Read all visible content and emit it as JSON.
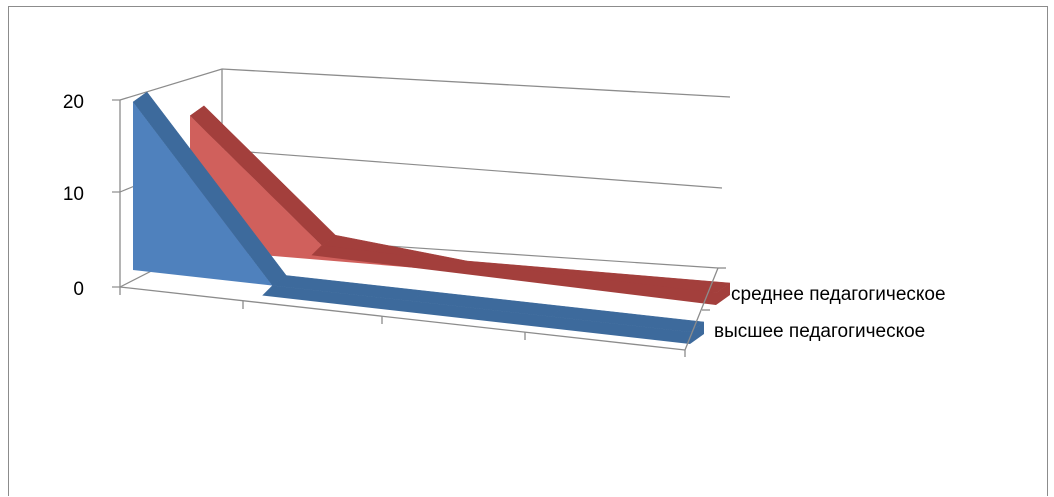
{
  "chart_data": {
    "type": "area",
    "style": "3d-area",
    "categories": [
      "",
      "",
      "",
      "",
      ""
    ],
    "series": [
      {
        "name": "высшее педагогическое",
        "values": [
          20,
          0,
          0,
          0,
          0
        ],
        "color": "#4f81bd"
      },
      {
        "name": "среднее педагогическое",
        "values": [
          18,
          2,
          0,
          0,
          0
        ],
        "color": "#c0504d"
      }
    ],
    "y_ticks": [
      "0",
      "10",
      "20"
    ],
    "ylim": [
      0,
      20
    ],
    "grid": true,
    "legend": "series labels on depth axis at right"
  }
}
